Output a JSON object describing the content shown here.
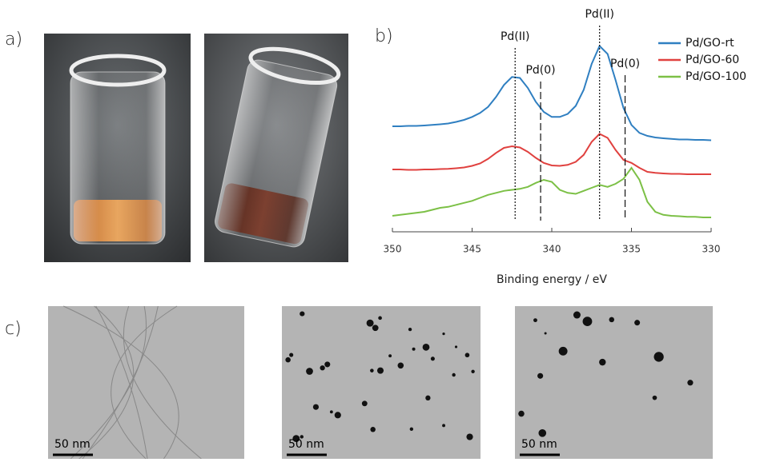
{
  "panel_labels": {
    "a": "a)",
    "b": "b)",
    "c": "c)"
  },
  "scale_bars": [
    "50 nm",
    "50 nm",
    "50 nm"
  ],
  "chart_data": {
    "type": "line",
    "xlabel": "Binding energy / eV",
    "x": [
      350,
      349.5,
      349,
      348.5,
      348,
      347.5,
      347,
      346.5,
      346,
      345.5,
      345,
      344.5,
      344,
      343.5,
      343,
      342.5,
      342,
      341.5,
      341,
      340.5,
      340,
      339.5,
      339,
      338.5,
      338,
      337.5,
      337,
      336.5,
      336,
      335.5,
      335,
      334.5,
      334,
      333.5,
      333,
      332.5,
      332,
      331.5,
      331,
      330.5,
      330
    ],
    "xlim": [
      350,
      330
    ],
    "xticks": [
      350,
      345,
      340,
      335,
      330
    ],
    "ylim": [
      0,
      10
    ],
    "legend": "top-right",
    "series": [
      {
        "name": "Pd/GO-rt",
        "color": "#2f7fc1",
        "values": [
          5.28,
          5.28,
          5.3,
          5.3,
          5.32,
          5.35,
          5.38,
          5.42,
          5.5,
          5.6,
          5.75,
          5.95,
          6.25,
          6.75,
          7.35,
          7.75,
          7.7,
          7.2,
          6.5,
          6.0,
          5.75,
          5.75,
          5.9,
          6.3,
          7.1,
          8.4,
          9.3,
          8.9,
          7.6,
          6.2,
          5.35,
          4.95,
          4.8,
          4.72,
          4.68,
          4.65,
          4.62,
          4.62,
          4.6,
          4.6,
          4.58
        ]
      },
      {
        "name": "Pd/GO-60",
        "color": "#e0413f",
        "values": [
          3.12,
          3.12,
          3.1,
          3.1,
          3.12,
          3.12,
          3.14,
          3.15,
          3.18,
          3.22,
          3.3,
          3.42,
          3.65,
          3.95,
          4.2,
          4.28,
          4.22,
          4.0,
          3.7,
          3.45,
          3.32,
          3.3,
          3.35,
          3.5,
          3.85,
          4.5,
          4.9,
          4.7,
          4.1,
          3.6,
          3.45,
          3.2,
          3.0,
          2.95,
          2.92,
          2.9,
          2.9,
          2.88,
          2.88,
          2.88,
          2.88
        ]
      },
      {
        "name": "Pd/GO-100",
        "color": "#7cc046",
        "values": [
          0.8,
          0.85,
          0.9,
          0.95,
          1.0,
          1.1,
          1.2,
          1.25,
          1.35,
          1.45,
          1.55,
          1.7,
          1.85,
          1.95,
          2.05,
          2.1,
          2.15,
          2.25,
          2.45,
          2.6,
          2.5,
          2.1,
          1.95,
          1.9,
          2.05,
          2.2,
          2.35,
          2.25,
          2.4,
          2.65,
          3.2,
          2.6,
          1.5,
          1.0,
          0.85,
          0.8,
          0.78,
          0.75,
          0.75,
          0.72,
          0.72
        ]
      }
    ],
    "annotations": [
      {
        "text": "Pd(II)",
        "x": 342.3,
        "style": "dotted"
      },
      {
        "text": "Pd(0)",
        "x": 340.7,
        "style": "dashed"
      },
      {
        "text": "Pd(II)",
        "x": 337,
        "style": "dotted"
      },
      {
        "text": "Pd(0)",
        "x": 335.4,
        "style": "dashed"
      }
    ]
  }
}
